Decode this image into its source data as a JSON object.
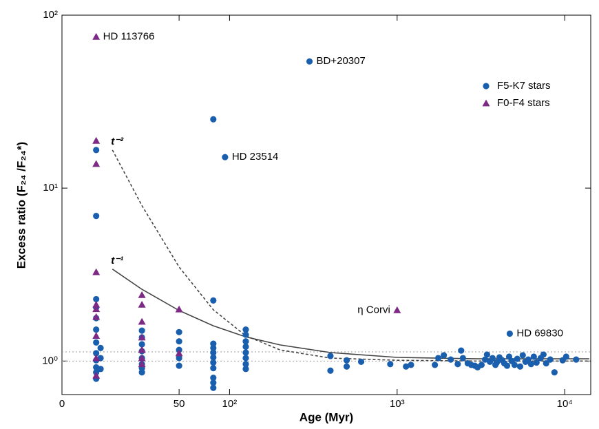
{
  "chart_data": {
    "type": "scatter",
    "xlabel": "Age (Myr)",
    "ylabel": "Excess ratio (F₂₄ /F₂₄*)",
    "xlog": true,
    "ylog": true,
    "xlim": [
      10,
      14300
    ],
    "ylim": [
      0.64,
      100
    ],
    "xticks": [
      {
        "value": 10,
        "label": "0"
      },
      50,
      {
        "value": 100,
        "label": "10²"
      },
      {
        "value": 1000,
        "label": "10³"
      },
      {
        "value": 10000,
        "label": "10⁴"
      }
    ],
    "yticks": [
      {
        "value": 1,
        "label": "10⁰"
      },
      {
        "value": 10,
        "label": "10¹"
      },
      {
        "value": 100,
        "label": "10²"
      }
    ],
    "reference_lines": [
      1.0,
      1.13
    ],
    "legend": "upper right",
    "series": [
      {
        "name": "F5-K7 stars",
        "marker": "circle",
        "color": "#1a5fae",
        "x": [
          300,
          94,
          4700,
          16,
          16,
          16,
          16,
          16,
          16,
          16,
          16,
          16,
          16,
          16,
          16,
          17,
          17,
          17,
          30,
          30,
          30,
          30,
          30,
          30,
          30,
          30,
          50,
          50,
          50,
          50,
          50,
          80,
          80,
          80,
          80,
          80,
          80,
          80,
          80,
          80,
          80,
          80,
          125,
          125,
          125,
          125,
          125,
          125,
          125,
          125,
          400,
          400,
          500,
          500,
          610,
          910,
          1130,
          1210,
          1680,
          1760,
          1900,
          2090,
          2300,
          2410,
          2470,
          2640,
          2770,
          2910,
          3020,
          3190,
          3350,
          3440,
          3580,
          3710,
          3860,
          3930,
          4080,
          4240,
          4360,
          4530,
          4660,
          4830,
          5020,
          5210,
          5420,
          5620,
          5840,
          6060,
          6300,
          6540,
          6790,
          7190,
          7470,
          7750,
          8200,
          8690,
          9720,
          10200,
          11700
        ],
        "values": [
          54,
          15.1,
          1.44,
          16.6,
          6.9,
          2.28,
          2.04,
          1.77,
          1.52,
          1.28,
          1.11,
          1.01,
          0.92,
          0.86,
          0.79,
          1.19,
          1.04,
          0.9,
          1.5,
          1.37,
          1.25,
          1.14,
          1.04,
          0.96,
          0.91,
          0.86,
          1.47,
          1.3,
          1.16,
          1.04,
          0.94,
          25.0,
          2.24,
          1.26,
          1.19,
          1.12,
          1.05,
          0.98,
          0.91,
          0.8,
          0.75,
          0.7,
          1.52,
          1.42,
          1.3,
          1.21,
          1.12,
          1.04,
          0.96,
          0.9,
          1.07,
          0.88,
          1.01,
          0.93,
          0.99,
          0.96,
          0.93,
          0.95,
          0.95,
          1.04,
          1.08,
          1.02,
          0.96,
          1.15,
          1.04,
          0.97,
          0.95,
          0.94,
          0.92,
          0.95,
          1.02,
          1.09,
          0.99,
          1.04,
          0.95,
          0.98,
          1.05,
          1.01,
          0.97,
          0.94,
          1.06,
          1.0,
          0.95,
          1.03,
          0.93,
          1.08,
          0.99,
          1.02,
          0.96,
          1.06,
          0.98,
          1.04,
          1.09,
          0.97,
          1.02,
          0.86,
          1.01,
          1.06,
          1.02
        ],
        "point_labels": [
          "BD+20307",
          "HD 23514",
          "HD 69830",
          null,
          null,
          null,
          null,
          null,
          null,
          null,
          null,
          null,
          null,
          null,
          null,
          null,
          null,
          null,
          null,
          null,
          null,
          null,
          null,
          null,
          null,
          null,
          null,
          null,
          null,
          null,
          null,
          null,
          null,
          null,
          null,
          null,
          null,
          null,
          null,
          null,
          null,
          null,
          null,
          null,
          null,
          null,
          null,
          null,
          null,
          null,
          null,
          null,
          null,
          null,
          null,
          null,
          null,
          null,
          null,
          null,
          null,
          null,
          null,
          null,
          null,
          null,
          null,
          null,
          null,
          null,
          null,
          null,
          null,
          null,
          null,
          null,
          null,
          null,
          null,
          null,
          null,
          null,
          null,
          null,
          null,
          null,
          null,
          null,
          null,
          null,
          null,
          null,
          null,
          null,
          null,
          null,
          null,
          null,
          null
        ]
      },
      {
        "name": "F0-F4 stars",
        "marker": "triangle",
        "color": "#7d2a86",
        "x": [
          16,
          1000,
          16,
          16,
          16,
          16,
          16,
          16,
          16,
          16,
          16,
          30,
          30,
          30,
          30,
          30,
          30,
          30,
          50,
          50
        ],
        "values": [
          75,
          1.97,
          18.8,
          13.8,
          3.27,
          2.12,
          2.0,
          1.8,
          1.4,
          1.04,
          0.825,
          2.41,
          2.12,
          1.69,
          1.37,
          1.16,
          1.04,
          0.96,
          1.99,
          1.11
        ],
        "point_labels": [
          "HD 113766",
          "η Corvi",
          null,
          null,
          null,
          null,
          null,
          null,
          null,
          null,
          null,
          null,
          null,
          null,
          null,
          null,
          null,
          null,
          null,
          null
        ]
      }
    ],
    "curves": [
      {
        "label": "t⁻¹",
        "style": "solid",
        "color": "#444444",
        "x": [
          20,
          30,
          50,
          80,
          125,
          200,
          400,
          1000,
          3000,
          14000
        ],
        "values": [
          3.4,
          2.6,
          1.96,
          1.6,
          1.38,
          1.24,
          1.12,
          1.05,
          1.03,
          1.03
        ]
      },
      {
        "label": "t⁻²",
        "style": "dashed",
        "color": "#444444",
        "x": [
          20,
          30,
          50,
          80,
          125,
          200,
          400,
          1000,
          3000,
          14000
        ],
        "values": [
          16.6,
          7.93,
          3.5,
          1.98,
          1.4,
          1.16,
          1.04,
          1.01,
          1.0,
          1.0
        ]
      }
    ]
  }
}
